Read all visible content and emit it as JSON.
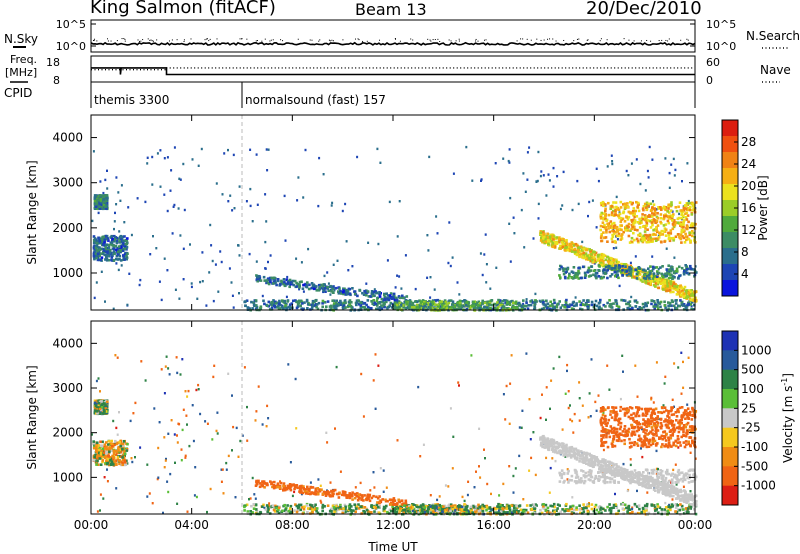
{
  "header": {
    "station": "King Salmon (fitACF)",
    "beam": "Beam 13",
    "date": "20/Dec/2010"
  },
  "side_labels": {
    "nsky": "N.Sky",
    "freq_line1": "Freq.",
    "freq_line2": "[MHz]",
    "cpid": "CPID",
    "nsearch": "N.Search",
    "nave": "Nave"
  },
  "chart_data": [
    {
      "type": "line",
      "panel": "noise",
      "ylabel": "N.Sky",
      "y_ticks": [
        "10^5",
        "10^0"
      ],
      "right_ylabel": "N.Search",
      "right_y_ticks": [
        "10^5",
        "10^0"
      ],
      "x": [
        "00:00",
        "04:00",
        "08:00",
        "12:00",
        "16:00",
        "20:00",
        "00:00"
      ],
      "note_level": "near 10^0 throughout"
    },
    {
      "type": "line",
      "panel": "frequency",
      "ylabel": "Freq. [MHz]",
      "y_ticks": [
        8,
        18
      ],
      "right_ylabel": "Nave",
      "right_y_ticks": [
        0,
        60
      ],
      "series": [
        {
          "name": "Freq.",
          "points": [
            [
              "00:00",
              13.5
            ],
            [
              "01:10",
              13.5
            ],
            [
              "01:10",
              10.5
            ],
            [
              "01:12",
              13.5
            ],
            [
              "03:00",
              13.5
            ],
            [
              "03:00",
              10.5
            ],
            [
              "24:00",
              10.5
            ]
          ]
        },
        {
          "name": "Nave",
          "points": [
            [
              "00:00",
              28
            ],
            [
              "03:00",
              28
            ],
            [
              "03:00",
              33
            ],
            [
              "24:00",
              33
            ]
          ]
        }
      ]
    },
    {
      "type": "table",
      "panel": "cpid",
      "ylabel": "CPID",
      "segments": [
        {
          "start": "00:00",
          "end": "06:00",
          "label": "themis 3300"
        },
        {
          "start": "06:00",
          "end": "24:00",
          "label": "normalsound (fast) 157"
        }
      ]
    },
    {
      "type": "heatmap",
      "panel": "power",
      "ylabel": "Slant Range [km]",
      "xlabel": "",
      "xlim": [
        0,
        24
      ],
      "ylim": [
        180,
        4500
      ],
      "y_ticks": [
        1000,
        2000,
        3000,
        4000
      ],
      "x_ticks": [
        "00:00",
        "04:00",
        "08:00",
        "12:00",
        "16:00",
        "20:00",
        "00:00"
      ],
      "colorbar": {
        "label": "Power [dB]",
        "ticks": [
          4,
          8,
          12,
          16,
          20,
          24,
          28
        ],
        "colors": [
          "#0a14dc",
          "#1d45b4",
          "#2a6e8c",
          "#3c8c64",
          "#50aa3c",
          "#9bcd28",
          "#ebe11e",
          "#f5af14",
          "#f08214",
          "#f0500f",
          "#dc1e0f"
        ]
      },
      "features": [
        {
          "name": "early backscatter A",
          "t": [
            0.1,
            0.6
          ],
          "range": [
            2450,
            2750
          ],
          "level": 8
        },
        {
          "name": "early backscatter B",
          "t": [
            0.05,
            1.4
          ],
          "range": [
            1300,
            1850
          ],
          "level": 6
        },
        {
          "name": "E-region band",
          "t": [
            6.5,
            12.5
          ],
          "range": [
            450,
            900
          ],
          "level": 6
        },
        {
          "name": "near-range band",
          "t": [
            12.0,
            17.0
          ],
          "range": [
            200,
            400
          ],
          "level": 12
        },
        {
          "name": "far-range patch",
          "t": [
            20.2,
            24.0
          ],
          "range": [
            1700,
            2600
          ],
          "level": 22
        },
        {
          "name": "descending arc",
          "t": [
            17.8,
            24.0
          ],
          "range": [
            500,
            1850
          ],
          "level": 20
        },
        {
          "name": "low band",
          "t": [
            18.5,
            24.0
          ],
          "range": [
            900,
            1200
          ],
          "level": 8
        }
      ]
    },
    {
      "type": "heatmap",
      "panel": "velocity",
      "ylabel": "Slant Range [km]",
      "xlabel": "Time UT",
      "xlim": [
        0,
        24
      ],
      "ylim": [
        180,
        4500
      ],
      "y_ticks": [
        1000,
        2000,
        3000,
        4000
      ],
      "x_ticks": [
        "00:00",
        "04:00",
        "08:00",
        "12:00",
        "16:00",
        "20:00",
        "00:00"
      ],
      "colorbar": {
        "label": "Velocity [m s^-1]",
        "ticks": [
          1000,
          500,
          100,
          25,
          -25,
          -100,
          -500,
          -1000
        ],
        "colors": [
          "#1e32b4",
          "#285a9b",
          "#2d8246",
          "#5abe37",
          "#c8c8c8",
          "#f5c81e",
          "#f08c14",
          "#f06414",
          "#dc1e14"
        ]
      },
      "features": [
        {
          "name": "early backscatter A",
          "t": [
            0.1,
            0.6
          ],
          "range": [
            2450,
            2750
          ],
          "velocity": 100
        },
        {
          "name": "early backscatter B",
          "t": [
            0.05,
            1.4
          ],
          "range": [
            1300,
            1850
          ],
          "velocity": -100
        },
        {
          "name": "E-region band",
          "t": [
            6.5,
            12.5
          ],
          "range": [
            450,
            900
          ],
          "velocity": -500
        },
        {
          "name": "near-range band",
          "t": [
            12.0,
            17.0
          ],
          "range": [
            200,
            400
          ],
          "velocity": 100
        },
        {
          "name": "far-range patch",
          "t": [
            20.2,
            24.0
          ],
          "range": [
            1700,
            2600
          ],
          "velocity": -500
        },
        {
          "name": "descending arc",
          "t": [
            17.8,
            24.0
          ],
          "range": [
            500,
            1850
          ],
          "velocity": 0
        },
        {
          "name": "low band",
          "t": [
            18.5,
            24.0
          ],
          "range": [
            900,
            1200
          ],
          "velocity": 0
        }
      ]
    }
  ]
}
